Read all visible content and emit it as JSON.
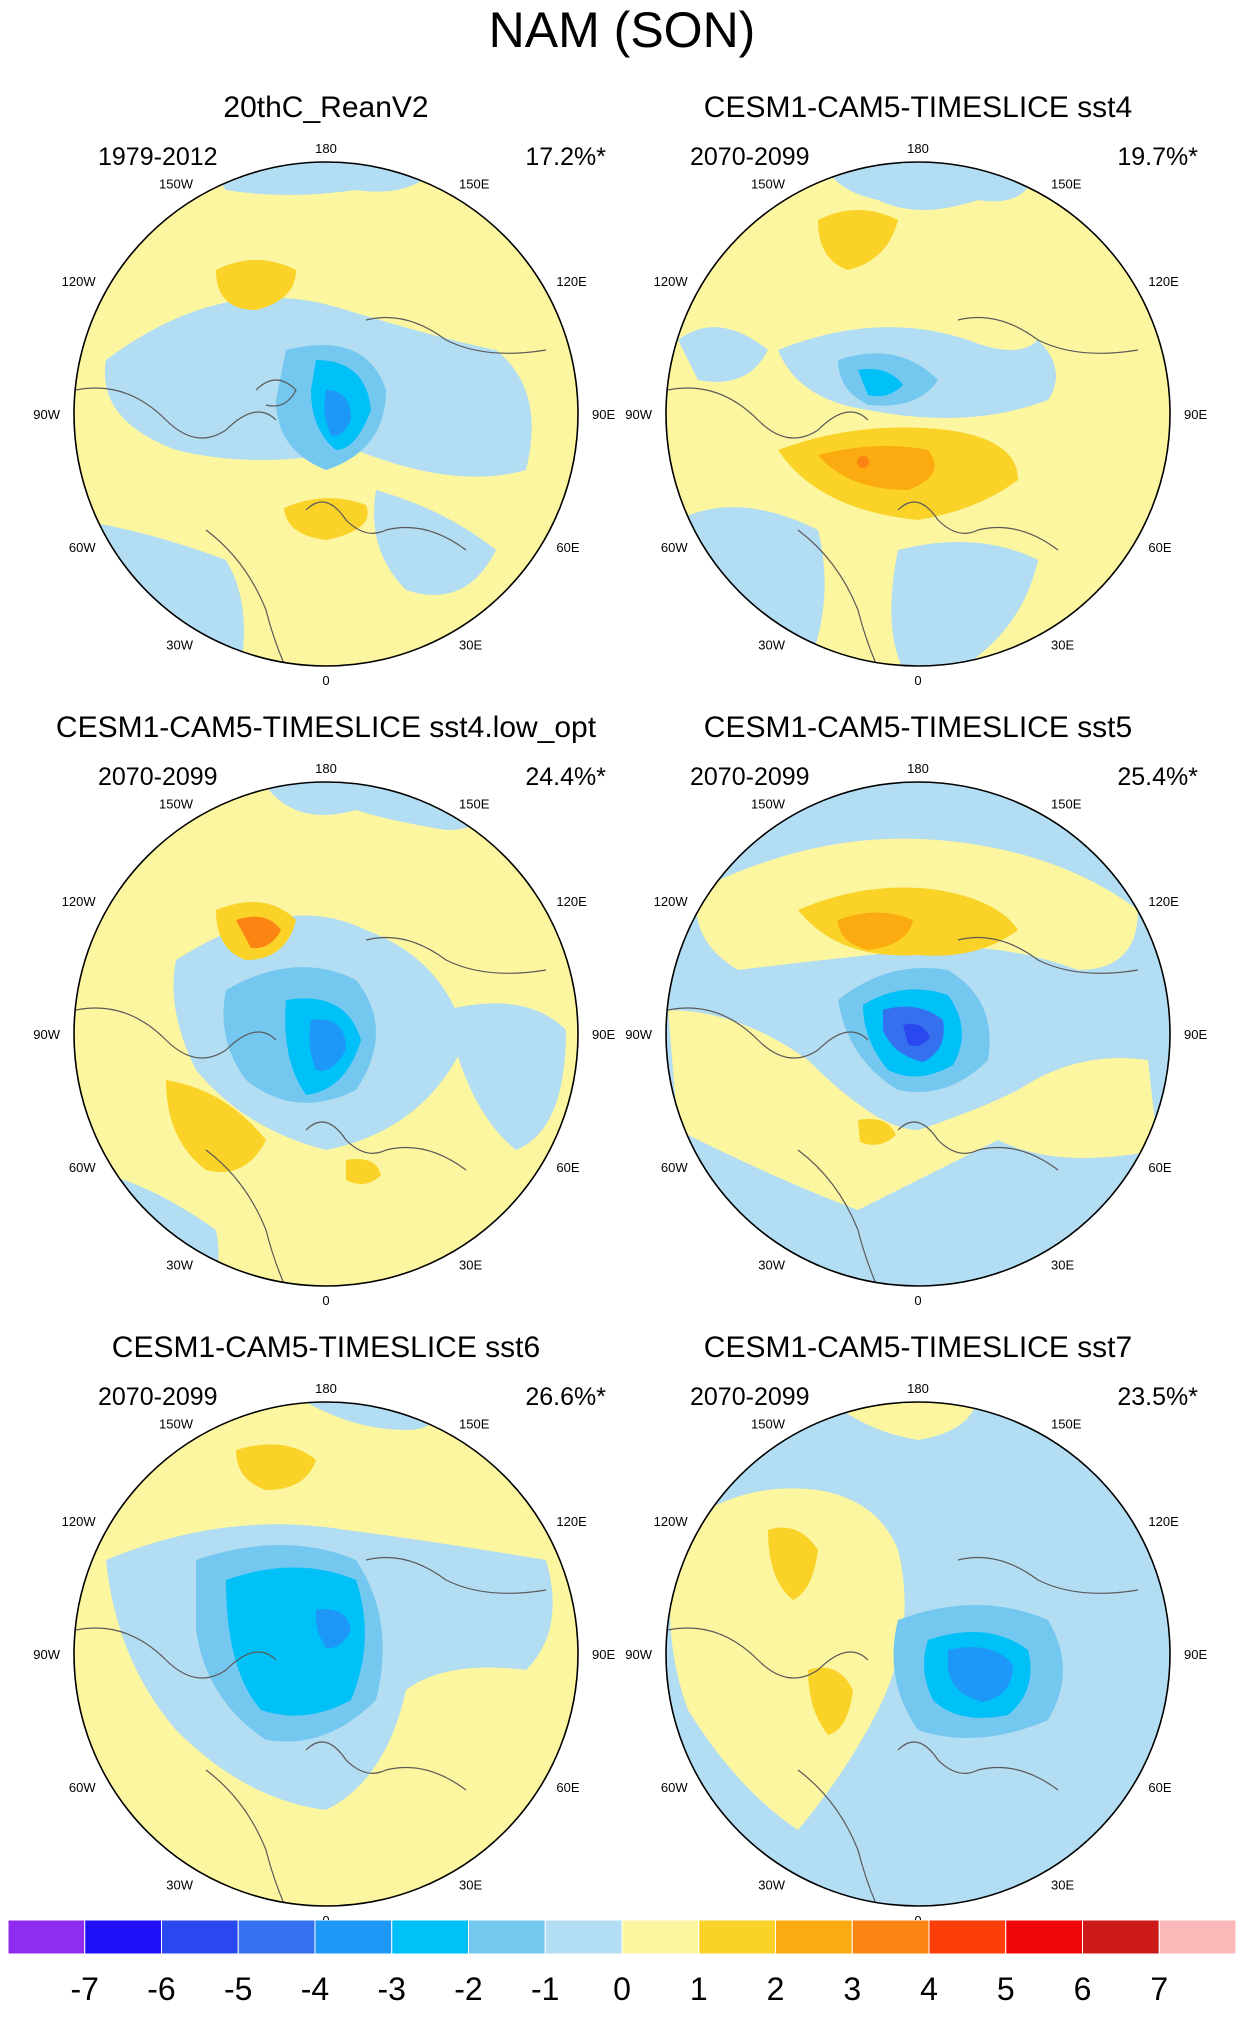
{
  "title": "NAM (SON)",
  "longitude_labels": [
    "180",
    "150E",
    "120E",
    "90E",
    "60E",
    "30E",
    "0",
    "30W",
    "60W",
    "90W",
    "120W",
    "150W"
  ],
  "panels": [
    {
      "title": "20thC_ReanV2",
      "period": "1979-2012",
      "variance": "17.2%*"
    },
    {
      "title": "CESM1-CAM5-TIMESLICE sst4",
      "period": "2070-2099",
      "variance": "19.7%*"
    },
    {
      "title": "CESM1-CAM5-TIMESLICE sst4.low_opt",
      "period": "2070-2099",
      "variance": "24.4%*"
    },
    {
      "title": "CESM1-CAM5-TIMESLICE sst5",
      "period": "2070-2099",
      "variance": "25.4%*"
    },
    {
      "title": "CESM1-CAM5-TIMESLICE sst6",
      "period": "2070-2099",
      "variance": "26.6%*"
    },
    {
      "title": "CESM1-CAM5-TIMESLICE sst7",
      "period": "2070-2099",
      "variance": "23.5%*"
    }
  ],
  "colorbar": {
    "labels": [
      "-7",
      "-6",
      "-5",
      "-4",
      "-3",
      "-2",
      "-1",
      "0",
      "1",
      "2",
      "3",
      "4",
      "5",
      "6",
      "7"
    ],
    "colors": [
      "#8f2cf0",
      "#1f10f8",
      "#2a48f0",
      "#3570ee",
      "#1e98f8",
      "#00c0f8",
      "#74c8f0",
      "#b2ddf2",
      "#fcf6a0",
      "#fad228",
      "#fbaa10",
      "#fb8412",
      "#fc3e08",
      "#f00606",
      "#cc1a1a",
      "#fcb8b8"
    ]
  }
}
